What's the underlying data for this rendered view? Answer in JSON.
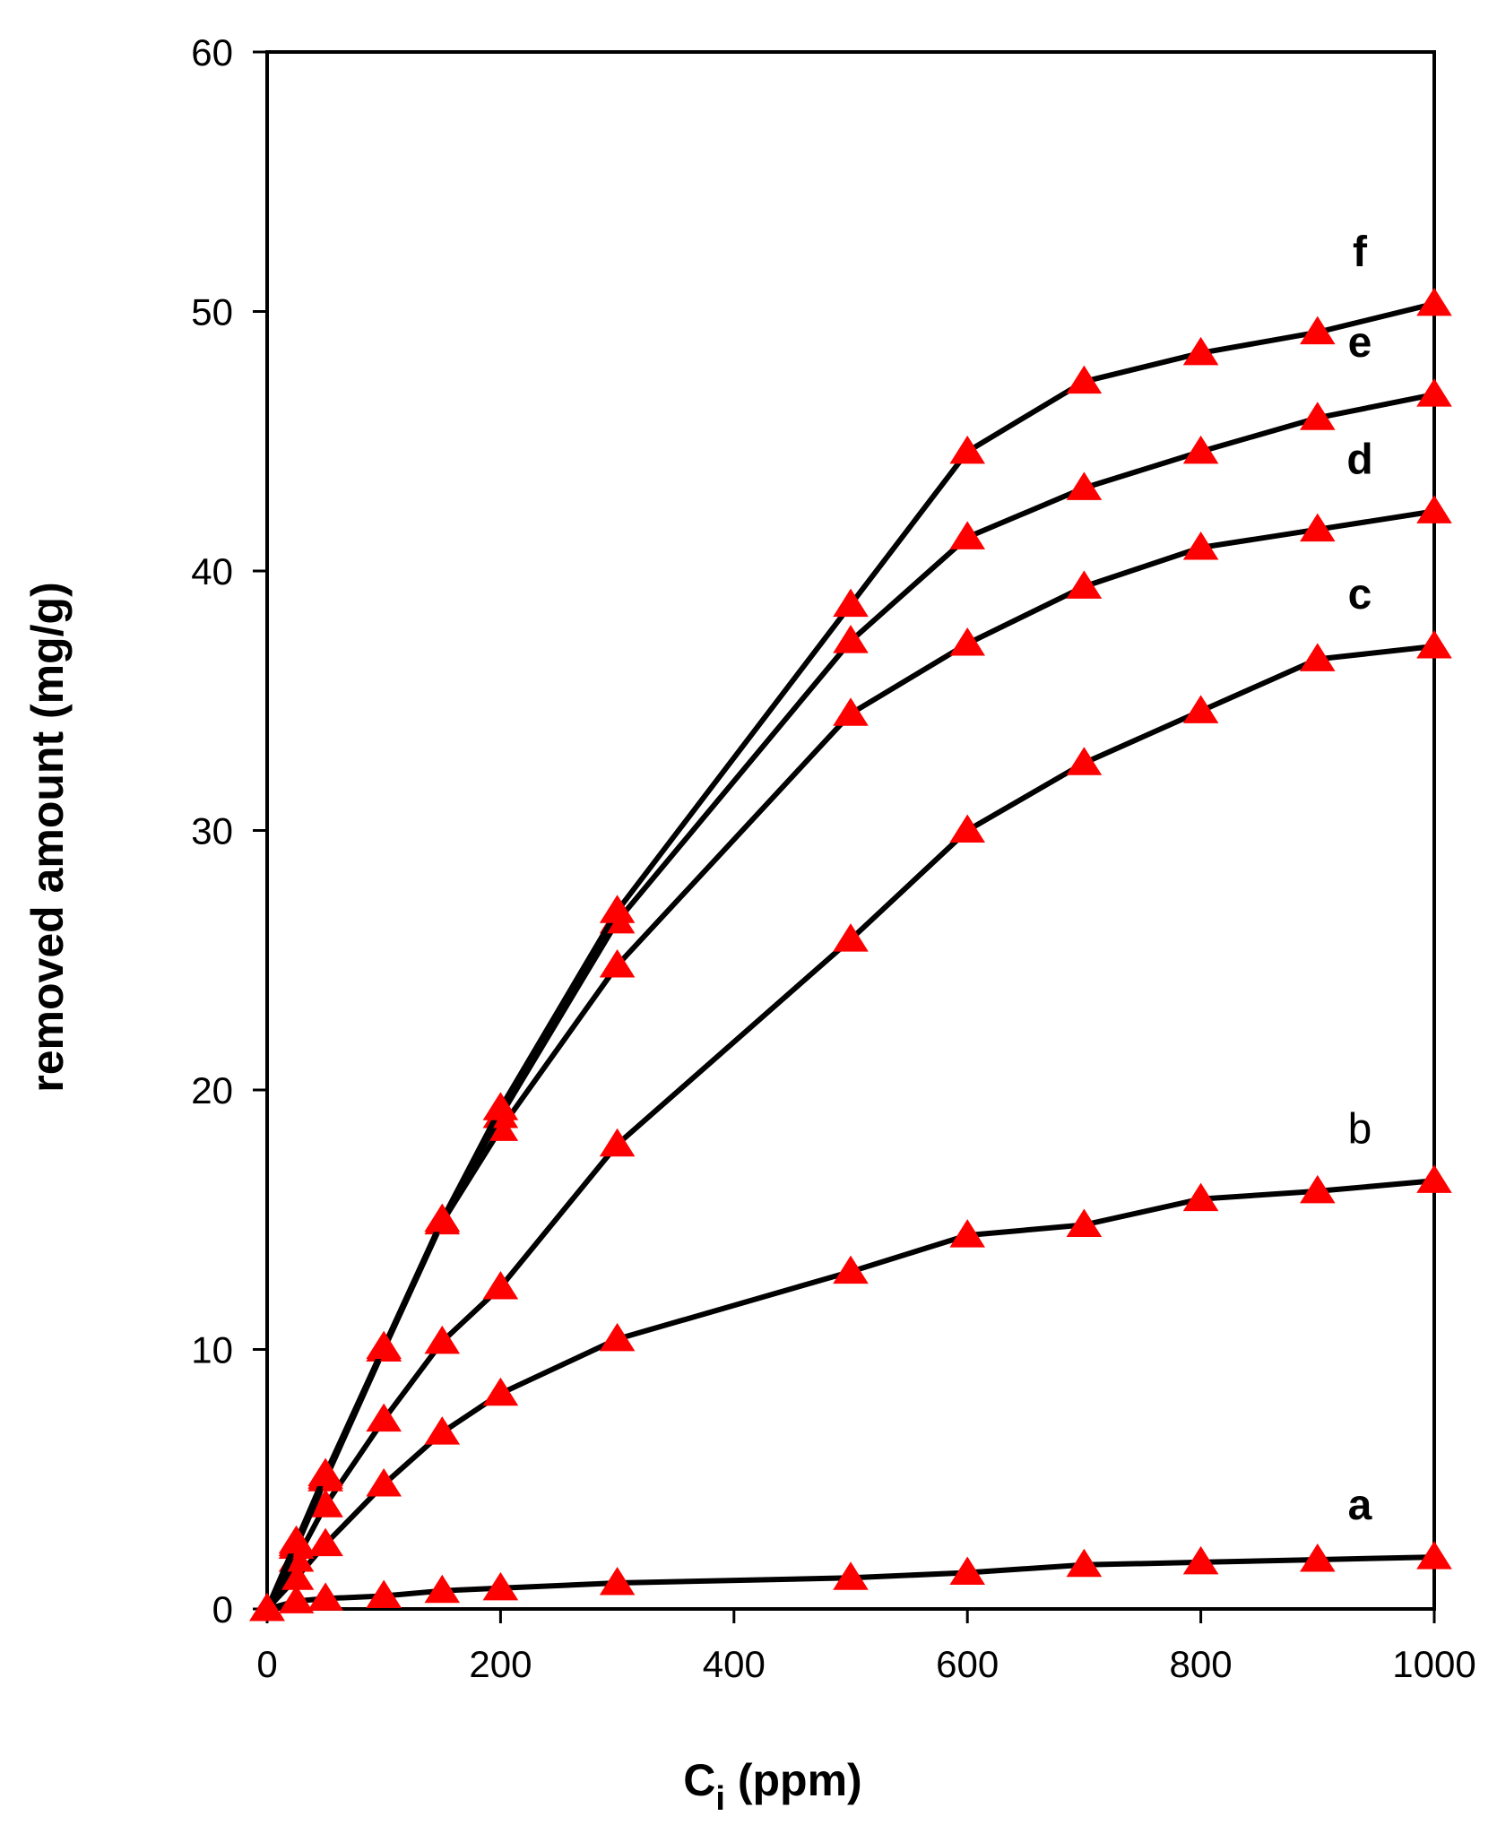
{
  "chart_data": {
    "type": "line",
    "title": "",
    "xlabel": "C",
    "xlabel_sub": "i",
    "xlabel_unit": " (ppm)",
    "ylabel": "removed amount (mg/g)",
    "xlim": [
      0,
      1000
    ],
    "ylim": [
      0,
      60
    ],
    "xticks": [
      0,
      200,
      400,
      600,
      800,
      1000
    ],
    "yticks": [
      0,
      10,
      20,
      30,
      40,
      50,
      60
    ],
    "grid": false,
    "legend": "none",
    "line_color": "#000000",
    "marker_color": "#ff0000",
    "marker": "triangle",
    "series": [
      {
        "name": "a",
        "label_bold": true,
        "x": [
          0,
          25,
          50,
          100,
          150,
          200,
          300,
          500,
          600,
          700,
          800,
          900,
          1000
        ],
        "y": [
          0,
          0.3,
          0.4,
          0.5,
          0.7,
          0.8,
          1.0,
          1.2,
          1.4,
          1.7,
          1.8,
          1.9,
          2.0
        ]
      },
      {
        "name": "b",
        "label_bold": false,
        "x": [
          0,
          25,
          50,
          100,
          150,
          200,
          300,
          500,
          600,
          700,
          800,
          900,
          1000
        ],
        "y": [
          0,
          1.2,
          2.5,
          4.8,
          6.8,
          8.3,
          10.4,
          13.0,
          14.4,
          14.8,
          15.8,
          16.1,
          16.5
        ]
      },
      {
        "name": "c",
        "label_bold": true,
        "x": [
          0,
          25,
          50,
          100,
          150,
          200,
          300,
          500,
          600,
          700,
          800,
          900,
          1000
        ],
        "y": [
          0,
          1.9,
          4.0,
          7.3,
          10.3,
          12.4,
          17.9,
          25.8,
          30.0,
          32.6,
          34.6,
          36.6,
          37.1
        ]
      },
      {
        "name": "d",
        "label_bold": true,
        "x": [
          0,
          25,
          50,
          100,
          150,
          200,
          300,
          500,
          600,
          700,
          800,
          900,
          1000
        ],
        "y": [
          0,
          2.4,
          5.0,
          10.0,
          14.9,
          18.5,
          24.8,
          34.5,
          37.2,
          39.4,
          40.9,
          41.6,
          42.3
        ]
      },
      {
        "name": "e",
        "label_bold": true,
        "x": [
          0,
          25,
          50,
          100,
          150,
          200,
          300,
          500,
          600,
          700,
          800,
          900,
          1000
        ],
        "y": [
          0,
          2.5,
          5.1,
          10.0,
          15.0,
          19.0,
          26.5,
          37.3,
          41.3,
          43.2,
          44.6,
          45.9,
          46.8
        ]
      },
      {
        "name": "f",
        "label_bold": true,
        "x": [
          0,
          25,
          50,
          100,
          150,
          200,
          300,
          500,
          600,
          700,
          800,
          900,
          1000
        ],
        "y": [
          0,
          2.6,
          5.2,
          10.1,
          15.0,
          19.3,
          26.9,
          38.7,
          44.6,
          47.3,
          48.4,
          49.2,
          50.3
        ]
      }
    ]
  }
}
